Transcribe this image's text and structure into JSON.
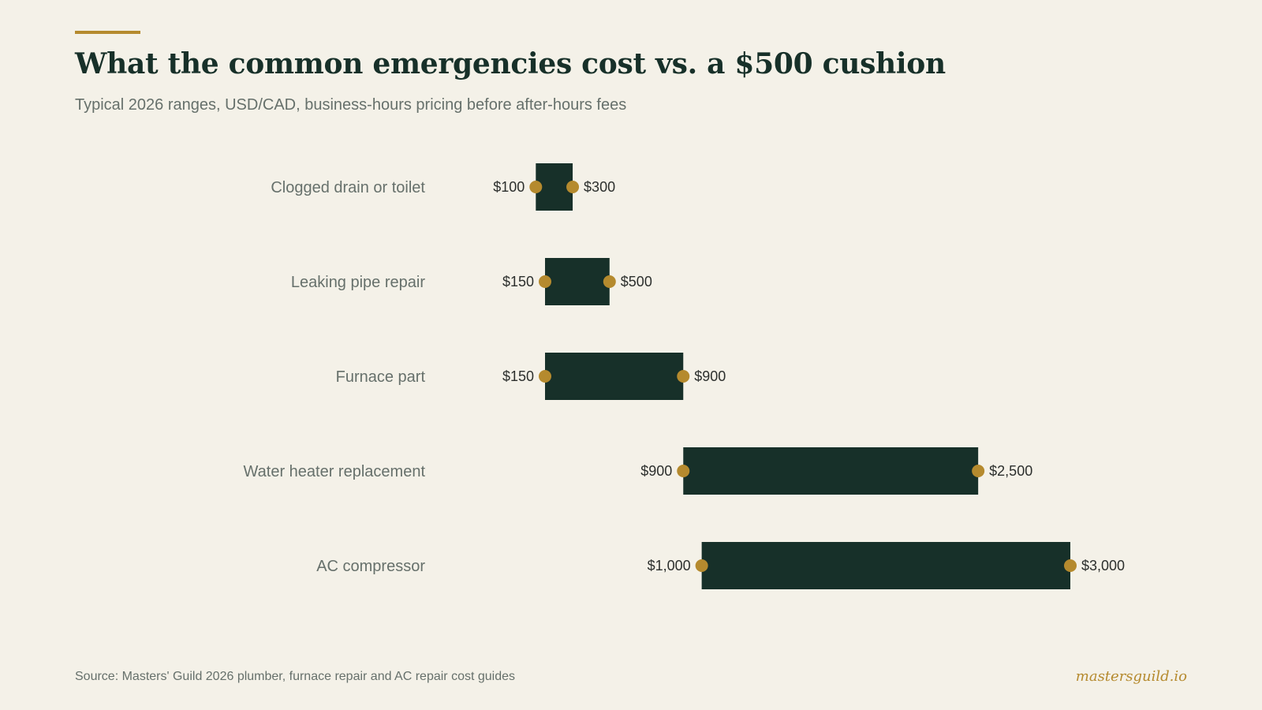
{
  "header": {
    "title": "What the common emergencies cost vs. a $500 cushion",
    "subtitle": "Typical 2026 ranges, USD/CAD, business-hours pricing before after-hours fees"
  },
  "footer": {
    "source": "Source: Masters' Guild 2026 plumber, furnace repair and AC repair cost guides",
    "brand": "mastersguild.io"
  },
  "colors": {
    "background": "#f4f1e8",
    "bar": "#173029",
    "marker": "#b58a2e",
    "accent": "#b58a2e"
  },
  "chart_data": {
    "type": "bar",
    "orientation": "horizontal-range",
    "title": "What the common emergencies cost vs. a $500 cushion",
    "subtitle": "Typical 2026 ranges, USD/CAD, business-hours pricing before after-hours fees",
    "categories": [
      "Clogged drain or toilet",
      "Leaking pipe repair",
      "Furnace part",
      "Water heater replacement",
      "AC compressor"
    ],
    "series": [
      {
        "name": "low",
        "values": [
          100,
          150,
          150,
          900,
          1000
        ]
      },
      {
        "name": "high",
        "values": [
          300,
          500,
          900,
          2500,
          3000
        ]
      }
    ],
    "low_labels": [
      "$100",
      "$150",
      "$150",
      "$900",
      "$1,000"
    ],
    "high_labels": [
      "$300",
      "$500",
      "$900",
      "$2,500",
      "$3,000"
    ],
    "xlim": [
      -500,
      3300
    ],
    "grid": false,
    "legend": "none"
  }
}
